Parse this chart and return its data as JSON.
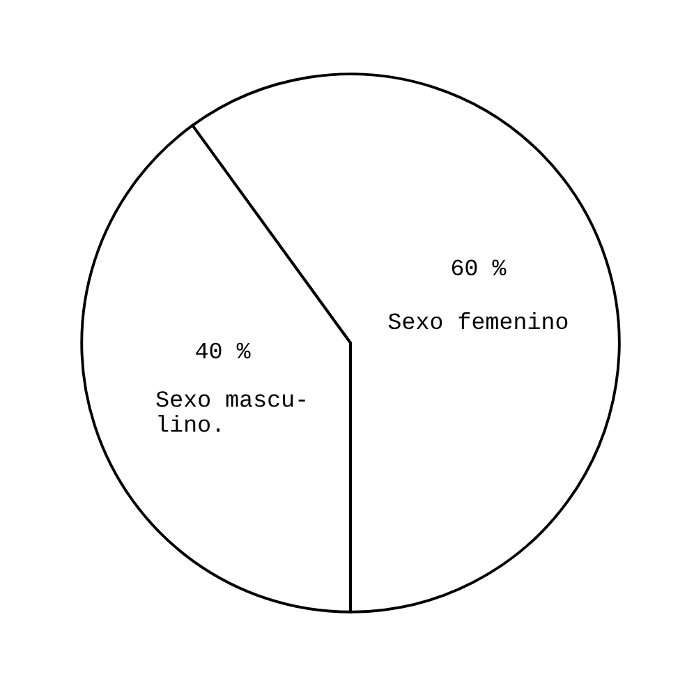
{
  "chart_data": {
    "type": "pie",
    "categories": [
      "Sexo femenino",
      "Sexo mascu-\nlino."
    ],
    "values": [
      60,
      40
    ],
    "value_labels": [
      "60 %",
      "40 %"
    ],
    "colors": [
      "#ffffff",
      "#ffffff"
    ],
    "legend": false
  }
}
